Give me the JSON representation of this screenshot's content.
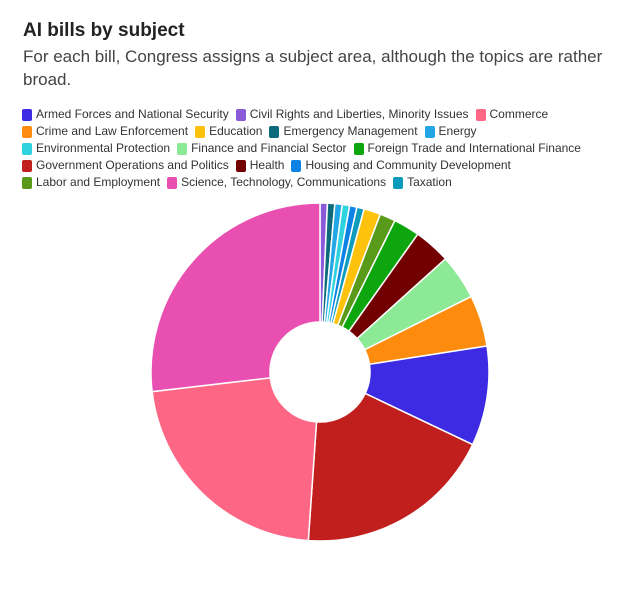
{
  "header": {
    "title": "AI bills by subject",
    "subtitle": "For each bill, Congress assigns a subject area, although the topics are rather broad."
  },
  "chart_data": {
    "type": "pie",
    "title": "AI bills by subject",
    "subtitle": "For each bill, Congress assigns a subject area, although the topics are rather broad.",
    "donut": true,
    "legend_position": "top",
    "slices": [
      {
        "label": "Armed Forces and National Security",
        "value": 9.5,
        "color": "#3d2be3"
      },
      {
        "label": "Civil Rights and Liberties, Minority Issues",
        "value": 0.7,
        "color": "#8b5ad9"
      },
      {
        "label": "Commerce",
        "value": 22.0,
        "color": "#fd6685"
      },
      {
        "label": "Crime and Law Enforcement",
        "value": 4.9,
        "color": "#fd8c0e"
      },
      {
        "label": "Education",
        "value": 1.6,
        "color": "#fcc20c"
      },
      {
        "label": "Emergency Management",
        "value": 0.7,
        "color": "#0b6b7b"
      },
      {
        "label": "Energy",
        "value": 0.7,
        "color": "#22a6e6"
      },
      {
        "label": "Environmental Protection",
        "value": 0.7,
        "color": "#2fd3e0"
      },
      {
        "label": "Finance and Financial Sector",
        "value": 4.3,
        "color": "#8ce995"
      },
      {
        "label": "Foreign Trade and International Finance",
        "value": 2.5,
        "color": "#0ea60e"
      },
      {
        "label": "Government Operations and Politics",
        "value": 19.0,
        "color": "#c11e1e"
      },
      {
        "label": "Health",
        "value": 3.5,
        "color": "#720000"
      },
      {
        "label": "Housing and Community Development",
        "value": 0.7,
        "color": "#0b83e6"
      },
      {
        "label": "Labor and Employment",
        "value": 1.5,
        "color": "#5a9a1b"
      },
      {
        "label": "Science, Technology, Communications",
        "value": 26.8,
        "color": "#e94fb0"
      },
      {
        "label": "Taxation",
        "value": 0.7,
        "color": "#0d9bbc"
      }
    ]
  }
}
